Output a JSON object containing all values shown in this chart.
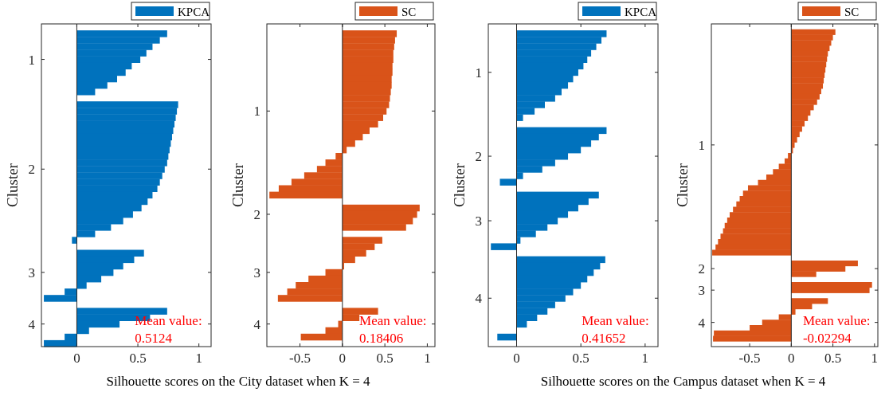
{
  "chart_data": [
    {
      "type": "bar",
      "orientation": "horizontal",
      "ylabel": "Cluster",
      "xlabel": "Silhouette scores on the City dataset when K = 4",
      "legend": "top right",
      "categories": [
        null,
        null,
        null,
        null,
        null,
        "1",
        null,
        null,
        null,
        null,
        null,
        null,
        null,
        null,
        null,
        null,
        null,
        null,
        null,
        null,
        null,
        null,
        "2",
        null,
        null,
        null,
        null,
        null,
        null,
        null,
        null,
        null,
        null,
        null,
        null,
        null,
        null,
        null,
        "3",
        null,
        null,
        null,
        null,
        null,
        null,
        null,
        "4",
        null,
        null,
        null
      ],
      "series": [
        {
          "name": "KPCA",
          "color": "#0072bd",
          "values": [
            null,
            0.74,
            0.68,
            0.62,
            0.57,
            0.52,
            0.45,
            0.4,
            0.33,
            0.25,
            0.15,
            null,
            0.83,
            0.82,
            0.81,
            0.8,
            0.79,
            0.78,
            0.77,
            0.76,
            0.75,
            0.74,
            0.72,
            0.7,
            0.68,
            0.66,
            0.62,
            0.58,
            0.53,
            0.46,
            0.38,
            0.28,
            0.15,
            -0.04,
            null,
            0.55,
            0.47,
            0.38,
            0.3,
            0.2,
            0.08,
            -0.1,
            -0.27,
            null,
            0.74,
            0.6,
            0.35,
            0.1,
            -0.1,
            -0.27
          ]
        }
      ],
      "xlim": [
        -0.29,
        1.1
      ],
      "xticks": [
        0,
        0.5,
        1
      ],
      "ref_lines": [
        {
          "axis": "x",
          "value": 0
        }
      ],
      "annotations": [
        "Mean value:\n0.5124"
      ]
    },
    {
      "type": "bar",
      "orientation": "horizontal",
      "ylabel": "Cluster",
      "legend": "top right",
      "categories": [
        null,
        null,
        null,
        null,
        null,
        null,
        null,
        null,
        null,
        null,
        null,
        null,
        null,
        "1",
        null,
        null,
        null,
        null,
        null,
        null,
        null,
        null,
        null,
        null,
        null,
        null,
        null,
        null,
        null,
        "2",
        null,
        null,
        null,
        null,
        null,
        null,
        null,
        null,
        "3",
        null,
        null,
        null,
        null,
        null,
        null,
        null,
        "4",
        null,
        null,
        null
      ],
      "series": [
        {
          "name": "SC",
          "color": "#d95319",
          "values": [
            null,
            0.64,
            0.62,
            0.61,
            0.6,
            0.6,
            0.59,
            0.59,
            0.58,
            0.58,
            0.57,
            0.56,
            0.55,
            0.52,
            0.48,
            0.42,
            0.32,
            0.24,
            0.15,
            0.05,
            -0.08,
            -0.2,
            -0.3,
            -0.45,
            -0.6,
            -0.75,
            -0.86,
            null,
            0.91,
            0.88,
            0.83,
            0.75,
            null,
            0.47,
            0.38,
            0.28,
            0.15,
            0.02,
            -0.2,
            -0.4,
            -0.55,
            -0.65,
            -0.76,
            null,
            0.42,
            0.2,
            -0.05,
            -0.2,
            -0.49,
            null
          ]
        }
      ],
      "xlim": [
        -0.89,
        1.09
      ],
      "xticks": [
        -0.5,
        0,
        0.5,
        1
      ],
      "ref_lines": [
        {
          "axis": "x",
          "value": 0
        }
      ],
      "annotations": [
        "Mean value:\n0.18406"
      ]
    },
    {
      "type": "bar",
      "orientation": "horizontal",
      "ylabel": "Cluster",
      "xlabel": "Silhouette scores on the Campus dataset when K = 4",
      "legend": "top right",
      "categories": [
        null,
        null,
        null,
        null,
        null,
        null,
        null,
        "1",
        null,
        null,
        null,
        null,
        null,
        null,
        null,
        null,
        null,
        null,
        null,
        null,
        "2",
        null,
        null,
        null,
        null,
        null,
        null,
        null,
        null,
        null,
        "3",
        null,
        null,
        null,
        null,
        null,
        null,
        null,
        null,
        null,
        null,
        null,
        "4",
        null,
        null,
        null,
        null,
        null,
        null,
        null
      ],
      "series": [
        {
          "name": "KPCA",
          "color": "#0072bd",
          "values": [
            null,
            0.7,
            0.66,
            0.62,
            0.58,
            0.55,
            0.52,
            0.48,
            0.44,
            0.4,
            0.35,
            0.3,
            0.22,
            0.14,
            0.05,
            null,
            0.7,
            0.64,
            0.58,
            0.5,
            0.4,
            0.3,
            0.2,
            0.05,
            -0.13,
            null,
            0.64,
            0.56,
            0.48,
            0.4,
            0.32,
            0.24,
            0.15,
            0.03,
            -0.2,
            null,
            0.69,
            0.65,
            0.6,
            0.55,
            0.5,
            0.44,
            0.38,
            0.3,
            0.24,
            0.16,
            0.08,
            0.0,
            -0.15,
            null
          ]
        }
      ],
      "xlim": [
        -0.22,
        1.1
      ],
      "xticks": [
        0,
        0.5,
        1
      ],
      "ref_lines": [
        {
          "axis": "x",
          "value": 0
        }
      ],
      "annotations": [
        "Mean value:\n0.41652"
      ]
    },
    {
      "type": "bar",
      "orientation": "horizontal",
      "ylabel": "Cluster",
      "legend": "top right",
      "categories": [
        null,
        null,
        null,
        null,
        null,
        null,
        null,
        null,
        null,
        null,
        null,
        null,
        null,
        null,
        null,
        null,
        null,
        null,
        null,
        null,
        null,
        null,
        "1",
        null,
        null,
        null,
        null,
        null,
        null,
        null,
        null,
        null,
        null,
        null,
        null,
        null,
        null,
        null,
        null,
        null,
        null,
        null,
        null,
        null,
        null,
        "2",
        null,
        null,
        null,
        "3",
        null,
        null,
        null,
        null,
        null,
        "4",
        null,
        null,
        null,
        null
      ],
      "series": [
        {
          "name": "SC",
          "color": "#d95319",
          "values": [
            null,
            0.53,
            0.5,
            0.48,
            0.46,
            0.44,
            0.43,
            0.42,
            0.41,
            0.4,
            0.39,
            0.38,
            0.36,
            0.34,
            0.31,
            0.27,
            0.23,
            0.2,
            0.16,
            0.13,
            0.1,
            0.07,
            0.04,
            0.02,
            -0.04,
            -0.08,
            -0.15,
            -0.22,
            -0.3,
            -0.4,
            -0.52,
            -0.58,
            -0.62,
            -0.66,
            -0.7,
            -0.74,
            -0.77,
            -0.8,
            -0.82,
            -0.85,
            -0.88,
            -0.91,
            -0.95,
            null,
            0.8,
            0.65,
            0.3,
            null,
            0.97,
            0.94,
            null,
            0.44,
            0.25,
            0.05,
            -0.15,
            -0.35,
            -0.5,
            -0.93,
            -0.94,
            null
          ]
        }
      ],
      "xlim": [
        -0.96,
        1.04
      ],
      "xticks": [
        -0.5,
        0,
        0.5,
        1
      ],
      "ref_lines": [
        {
          "axis": "x",
          "value": 0
        }
      ],
      "annotations": [
        "Mean value:\n-0.02294"
      ]
    }
  ]
}
